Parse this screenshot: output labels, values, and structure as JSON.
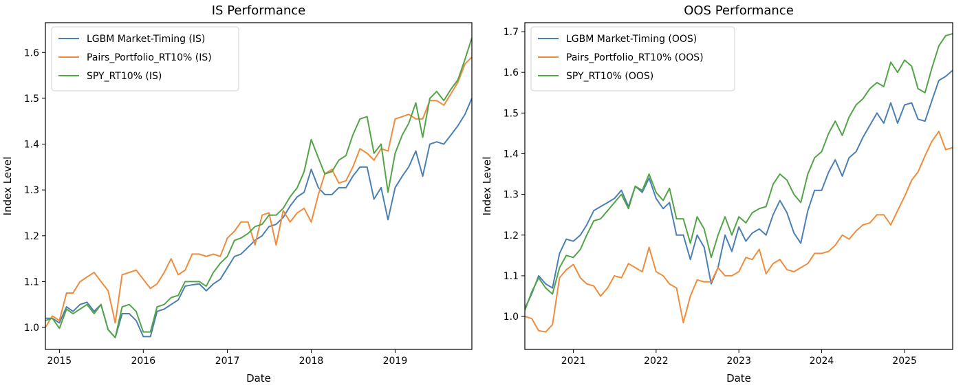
{
  "chart_data": [
    {
      "type": "line",
      "title": "IS Performance",
      "xlabel": "Date",
      "ylabel": "Index Level",
      "xlim": [
        "2014-11-01",
        "2019-12-01"
      ],
      "ylim": [
        0.952,
        1.665
      ],
      "x_ticks": [
        {
          "date": "2015-01-01",
          "label": "2015"
        },
        {
          "date": "2016-01-01",
          "label": "2016"
        },
        {
          "date": "2017-01-01",
          "label": "2017"
        },
        {
          "date": "2018-01-01",
          "label": "2018"
        },
        {
          "date": "2019-01-01",
          "label": "2019"
        }
      ],
      "y_ticks": [
        {
          "value": 1.0,
          "label": "1.0"
        },
        {
          "value": 1.1,
          "label": "1.1"
        },
        {
          "value": 1.2,
          "label": "1.2"
        },
        {
          "value": 1.3,
          "label": "1.3"
        },
        {
          "value": 1.4,
          "label": "1.4"
        },
        {
          "value": 1.5,
          "label": "1.5"
        },
        {
          "value": 1.6,
          "label": "1.6"
        }
      ],
      "grid": false,
      "legend_position": "upper-left",
      "x": [
        "2014-11-01",
        "2014-12-01",
        "2015-01-01",
        "2015-02-01",
        "2015-03-01",
        "2015-04-01",
        "2015-05-01",
        "2015-06-01",
        "2015-07-01",
        "2015-08-01",
        "2015-09-01",
        "2015-10-01",
        "2015-11-01",
        "2015-12-01",
        "2016-01-01",
        "2016-02-01",
        "2016-03-01",
        "2016-04-01",
        "2016-05-01",
        "2016-06-01",
        "2016-07-01",
        "2016-08-01",
        "2016-09-01",
        "2016-10-01",
        "2016-11-01",
        "2016-12-01",
        "2017-01-01",
        "2017-02-01",
        "2017-03-01",
        "2017-04-01",
        "2017-05-01",
        "2017-06-01",
        "2017-07-01",
        "2017-08-01",
        "2017-09-01",
        "2017-10-01",
        "2017-11-01",
        "2017-12-01",
        "2018-01-01",
        "2018-02-01",
        "2018-03-01",
        "2018-04-01",
        "2018-05-01",
        "2018-06-01",
        "2018-07-01",
        "2018-08-01",
        "2018-09-01",
        "2018-10-01",
        "2018-11-01",
        "2018-12-01",
        "2019-01-01",
        "2019-02-01",
        "2019-03-01",
        "2019-04-01",
        "2019-05-01",
        "2019-06-01",
        "2019-07-01",
        "2019-08-01",
        "2019-09-01",
        "2019-10-01",
        "2019-11-01",
        "2019-12-01"
      ],
      "series": [
        {
          "name": "LGBM Market-Timing (IS)",
          "color": "#4a7fb5",
          "values": [
            1.02,
            1.02,
            1.01,
            1.045,
            1.035,
            1.05,
            1.055,
            1.035,
            1.05,
            0.995,
            0.978,
            1.03,
            1.03,
            1.015,
            0.98,
            0.98,
            1.035,
            1.04,
            1.05,
            1.06,
            1.09,
            1.093,
            1.095,
            1.08,
            1.095,
            1.105,
            1.13,
            1.155,
            1.16,
            1.175,
            1.19,
            1.2,
            1.22,
            1.225,
            1.24,
            1.265,
            1.285,
            1.295,
            1.345,
            1.305,
            1.29,
            1.29,
            1.305,
            1.305,
            1.33,
            1.35,
            1.35,
            1.28,
            1.305,
            1.235,
            1.305,
            1.33,
            1.35,
            1.385,
            1.33,
            1.4,
            1.405,
            1.4,
            1.42,
            1.44,
            1.465,
            1.5
          ]
        },
        {
          "name": "Pairs_Portfolio_RT10% (IS)",
          "color": "#ef8c3b",
          "values": [
            1.0,
            1.025,
            1.015,
            1.075,
            1.075,
            1.1,
            1.11,
            1.12,
            1.1,
            1.08,
            1.01,
            1.115,
            1.12,
            1.125,
            1.105,
            1.085,
            1.095,
            1.12,
            1.15,
            1.115,
            1.125,
            1.16,
            1.16,
            1.155,
            1.16,
            1.155,
            1.195,
            1.21,
            1.23,
            1.23,
            1.18,
            1.245,
            1.25,
            1.18,
            1.255,
            1.23,
            1.25,
            1.26,
            1.23,
            1.29,
            1.335,
            1.345,
            1.315,
            1.32,
            1.35,
            1.39,
            1.38,
            1.365,
            1.39,
            1.385,
            1.455,
            1.46,
            1.465,
            1.455,
            1.455,
            1.495,
            1.495,
            1.485,
            1.51,
            1.535,
            1.575,
            1.59
          ]
        },
        {
          "name": "SPY_RT10% (IS)",
          "color": "#52a447",
          "values": [
            1.015,
            1.02,
            0.998,
            1.04,
            1.03,
            1.04,
            1.05,
            1.03,
            1.05,
            0.995,
            0.978,
            1.045,
            1.05,
            1.035,
            0.99,
            0.99,
            1.045,
            1.05,
            1.065,
            1.07,
            1.1,
            1.1,
            1.1,
            1.09,
            1.12,
            1.14,
            1.155,
            1.19,
            1.195,
            1.205,
            1.22,
            1.225,
            1.245,
            1.245,
            1.26,
            1.285,
            1.305,
            1.34,
            1.41,
            1.37,
            1.335,
            1.34,
            1.365,
            1.375,
            1.42,
            1.455,
            1.46,
            1.38,
            1.4,
            1.295,
            1.38,
            1.42,
            1.445,
            1.49,
            1.415,
            1.5,
            1.515,
            1.495,
            1.52,
            1.54,
            1.585,
            1.632
          ]
        }
      ]
    },
    {
      "type": "line",
      "title": "OOS Performance",
      "xlabel": "Date",
      "ylabel": "Index Level",
      "xlim": [
        "2020-06-01",
        "2025-08-01"
      ],
      "ylim": [
        0.919,
        1.722
      ],
      "x_ticks": [
        {
          "date": "2021-01-01",
          "label": "2021"
        },
        {
          "date": "2022-01-01",
          "label": "2022"
        },
        {
          "date": "2023-01-01",
          "label": "2023"
        },
        {
          "date": "2024-01-01",
          "label": "2024"
        },
        {
          "date": "2025-01-01",
          "label": "2025"
        }
      ],
      "y_ticks": [
        {
          "value": 1.0,
          "label": "1.0"
        },
        {
          "value": 1.1,
          "label": "1.1"
        },
        {
          "value": 1.2,
          "label": "1.2"
        },
        {
          "value": 1.3,
          "label": "1.3"
        },
        {
          "value": 1.4,
          "label": "1.4"
        },
        {
          "value": 1.5,
          "label": "1.5"
        },
        {
          "value": 1.6,
          "label": "1.6"
        },
        {
          "value": 1.7,
          "label": "1.7"
        }
      ],
      "grid": false,
      "legend_position": "upper-left",
      "x": [
        "2020-06-01",
        "2020-07-01",
        "2020-08-01",
        "2020-09-01",
        "2020-10-01",
        "2020-11-01",
        "2020-12-01",
        "2021-01-01",
        "2021-02-01",
        "2021-03-01",
        "2021-04-01",
        "2021-05-01",
        "2021-06-01",
        "2021-07-01",
        "2021-08-01",
        "2021-09-01",
        "2021-10-01",
        "2021-11-01",
        "2021-12-01",
        "2022-01-01",
        "2022-02-01",
        "2022-03-01",
        "2022-04-01",
        "2022-05-01",
        "2022-06-01",
        "2022-07-01",
        "2022-08-01",
        "2022-09-01",
        "2022-10-01",
        "2022-11-01",
        "2022-12-01",
        "2023-01-01",
        "2023-02-01",
        "2023-03-01",
        "2023-04-01",
        "2023-05-01",
        "2023-06-01",
        "2023-07-01",
        "2023-08-01",
        "2023-09-01",
        "2023-10-01",
        "2023-11-01",
        "2023-12-01",
        "2024-01-01",
        "2024-02-01",
        "2024-03-01",
        "2024-04-01",
        "2024-05-01",
        "2024-06-01",
        "2024-07-01",
        "2024-08-01",
        "2024-09-01",
        "2024-10-01",
        "2024-11-01",
        "2024-12-01",
        "2025-01-01",
        "2025-02-01",
        "2025-03-01",
        "2025-04-01",
        "2025-05-01",
        "2025-06-01",
        "2025-07-01",
        "2025-08-01"
      ],
      "series": [
        {
          "name": "LGBM Market-Timing (OOS)",
          "color": "#4a7fb5",
          "values": [
            1.02,
            1.055,
            1.1,
            1.08,
            1.07,
            1.155,
            1.19,
            1.185,
            1.2,
            1.225,
            1.26,
            1.27,
            1.28,
            1.29,
            1.31,
            1.27,
            1.32,
            1.305,
            1.34,
            1.29,
            1.265,
            1.28,
            1.2,
            1.2,
            1.14,
            1.2,
            1.17,
            1.08,
            1.12,
            1.2,
            1.16,
            1.22,
            1.185,
            1.205,
            1.215,
            1.2,
            1.25,
            1.285,
            1.255,
            1.205,
            1.18,
            1.26,
            1.31,
            1.31,
            1.355,
            1.385,
            1.345,
            1.39,
            1.405,
            1.44,
            1.47,
            1.5,
            1.475,
            1.525,
            1.475,
            1.52,
            1.525,
            1.485,
            1.48,
            1.53,
            1.58,
            1.59,
            1.605
          ]
        },
        {
          "name": "Pairs_Portfolio_RT10% (OOS)",
          "color": "#ef8c3b",
          "values": [
            1.0,
            0.995,
            0.965,
            0.962,
            0.98,
            1.095,
            1.115,
            1.128,
            1.095,
            1.08,
            1.075,
            1.05,
            1.07,
            1.1,
            1.095,
            1.13,
            1.12,
            1.11,
            1.17,
            1.11,
            1.1,
            1.08,
            1.07,
            0.985,
            1.05,
            1.09,
            1.085,
            1.085,
            1.12,
            1.1,
            1.1,
            1.11,
            1.145,
            1.14,
            1.165,
            1.105,
            1.13,
            1.14,
            1.115,
            1.11,
            1.12,
            1.13,
            1.155,
            1.155,
            1.16,
            1.175,
            1.2,
            1.19,
            1.21,
            1.225,
            1.23,
            1.25,
            1.25,
            1.225,
            1.26,
            1.295,
            1.335,
            1.355,
            1.395,
            1.43,
            1.455,
            1.41,
            1.415
          ]
        },
        {
          "name": "SPY_RT10% (OOS)",
          "color": "#52a447",
          "values": [
            1.015,
            1.06,
            1.095,
            1.07,
            1.055,
            1.12,
            1.15,
            1.145,
            1.165,
            1.2,
            1.235,
            1.24,
            1.26,
            1.28,
            1.3,
            1.265,
            1.32,
            1.31,
            1.35,
            1.305,
            1.285,
            1.315,
            1.24,
            1.24,
            1.18,
            1.245,
            1.215,
            1.145,
            1.2,
            1.245,
            1.2,
            1.245,
            1.23,
            1.255,
            1.265,
            1.27,
            1.325,
            1.35,
            1.335,
            1.3,
            1.28,
            1.35,
            1.39,
            1.405,
            1.45,
            1.48,
            1.445,
            1.49,
            1.52,
            1.535,
            1.56,
            1.575,
            1.565,
            1.625,
            1.6,
            1.63,
            1.615,
            1.56,
            1.55,
            1.61,
            1.665,
            1.69,
            1.695
          ]
        }
      ]
    }
  ]
}
